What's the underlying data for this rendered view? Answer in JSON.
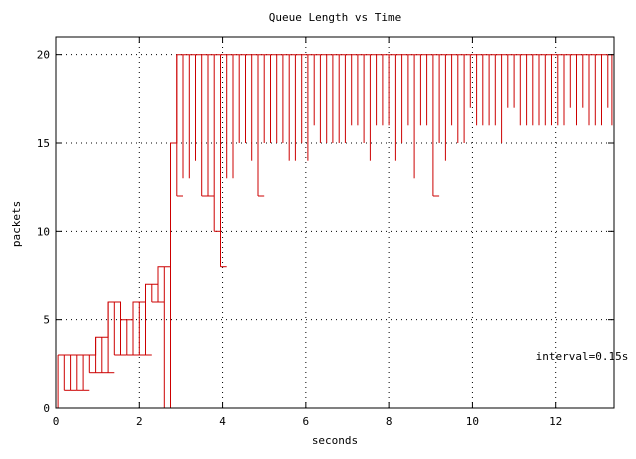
{
  "chart_data": {
    "type": "line",
    "title": "Queue Length vs Time",
    "xlabel": "seconds",
    "ylabel": "packets",
    "annotation": "interval=0.15s",
    "xlim": [
      0,
      13.4
    ],
    "ylim": [
      0,
      21
    ],
    "xticks": [
      0,
      2,
      4,
      6,
      8,
      10,
      12
    ],
    "yticks": [
      0,
      5,
      10,
      15,
      20
    ],
    "grid": true,
    "series_color": "#cc0000",
    "series": [
      {
        "style": "impulse-steps",
        "x": [
          0.05,
          0.2,
          0.35,
          0.5,
          0.65,
          0.8,
          0.95,
          1.1,
          1.25,
          1.4,
          1.55,
          1.7,
          1.85,
          2.0,
          2.15,
          2.3,
          2.45,
          2.6,
          2.75,
          2.9,
          3.05,
          3.2,
          3.35,
          3.5,
          3.65,
          3.8,
          3.95,
          4.1,
          4.25,
          4.4,
          4.55,
          4.7,
          4.85,
          5.0,
          5.15,
          5.3,
          5.45,
          5.6,
          5.75,
          5.9,
          6.05,
          6.2,
          6.35,
          6.5,
          6.65,
          6.8,
          6.95,
          7.1,
          7.25,
          7.4,
          7.55,
          7.7,
          7.85,
          8.0,
          8.15,
          8.3,
          8.45,
          8.6,
          8.75,
          8.9,
          9.05,
          9.2,
          9.35,
          9.5,
          9.65,
          9.8,
          9.95,
          10.1,
          10.25,
          10.4,
          10.55,
          10.7,
          10.85,
          11.0,
          11.15,
          11.3,
          11.45,
          11.6,
          11.75,
          11.9,
          12.05,
          12.2,
          12.35,
          12.5,
          12.65,
          12.8,
          12.95,
          13.1,
          13.25,
          13.35
        ],
        "max": [
          3,
          3,
          3,
          3,
          3,
          3,
          4,
          4,
          6,
          6,
          5,
          5,
          6,
          6,
          7,
          7,
          8,
          8,
          15,
          20,
          20,
          20,
          20,
          20,
          20,
          20,
          20,
          20,
          20,
          20,
          20,
          20,
          20,
          20,
          20,
          20,
          20,
          20,
          20,
          20,
          20,
          20,
          20,
          20,
          20,
          20,
          20,
          20,
          20,
          20,
          20,
          20,
          20,
          20,
          20,
          20,
          20,
          20,
          20,
          20,
          20,
          20,
          20,
          20,
          20,
          20,
          20,
          20,
          20,
          20,
          20,
          20,
          20,
          20,
          20,
          20,
          20,
          20,
          20,
          20,
          20,
          20,
          20,
          20,
          20,
          20,
          20,
          20,
          20,
          20
        ],
        "min": [
          0,
          1,
          1,
          1,
          1,
          2,
          2,
          2,
          2,
          3,
          3,
          3,
          3,
          3,
          3,
          6,
          6,
          0,
          0,
          12,
          13,
          13,
          14,
          12,
          12,
          10,
          8,
          13,
          13,
          15,
          15,
          14,
          12,
          15,
          15,
          15,
          15,
          14,
          14,
          15,
          14,
          16,
          15,
          15,
          15,
          15,
          15,
          16,
          16,
          15,
          14,
          16,
          16,
          16,
          14,
          15,
          16,
          13,
          16,
          16,
          12,
          15,
          14,
          16,
          15,
          15,
          17,
          16,
          16,
          16,
          16,
          15,
          17,
          17,
          16,
          16,
          16,
          16,
          16,
          16,
          16,
          16,
          17,
          16,
          17,
          16,
          16,
          16,
          17,
          16
        ]
      }
    ]
  }
}
